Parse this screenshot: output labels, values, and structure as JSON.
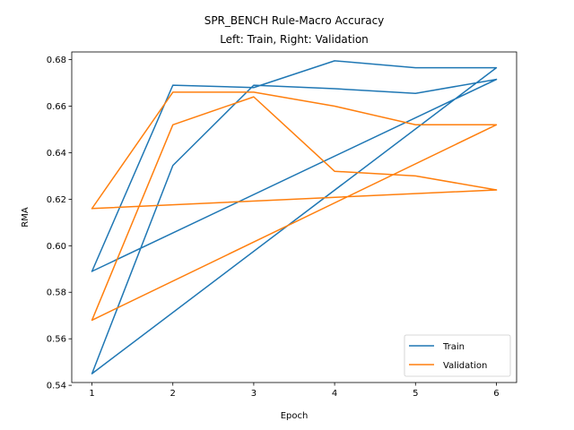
{
  "chart_data": {
    "type": "line",
    "title": "SPR_BENCH Rule-Macro Accuracy",
    "subtitle": "Left: Train, Right: Validation",
    "xlabel": "Epoch",
    "ylabel": "RMA",
    "xlim": [
      0.75,
      6.25
    ],
    "ylim": [
      0.5412,
      0.6833
    ],
    "xticks": [
      1,
      2,
      3,
      4,
      5,
      6
    ],
    "yticks": [
      0.54,
      0.56,
      0.58,
      0.6,
      0.62,
      0.64,
      0.66,
      0.68
    ],
    "ytick_labels": [
      "0.54",
      "0.56",
      "0.58",
      "0.60",
      "0.62",
      "0.64",
      "0.66",
      "0.68"
    ],
    "grid": false,
    "legend_position": "lower-right",
    "series": [
      {
        "name": "Train",
        "color": "#1f77b4",
        "x": [
          1,
          2,
          3,
          4,
          5,
          6,
          1,
          2,
          3,
          4,
          5,
          6,
          1,
          6
        ],
        "y": [
          0.589,
          0.669,
          0.668,
          0.6795,
          0.6765,
          0.6765,
          0.545,
          0.6345,
          0.669,
          0.6675,
          0.6655,
          0.6715,
          0.589,
          0.6715
        ]
      },
      {
        "name": "Validation",
        "color": "#ff7f0e",
        "x": [
          1,
          2,
          3,
          4,
          5,
          6,
          1,
          2,
          3,
          4,
          5,
          6,
          1,
          6
        ],
        "y": [
          0.616,
          0.666,
          0.666,
          0.66,
          0.652,
          0.652,
          0.568,
          0.652,
          0.664,
          0.632,
          0.63,
          0.624,
          0.616,
          0.624
        ]
      }
    ]
  }
}
